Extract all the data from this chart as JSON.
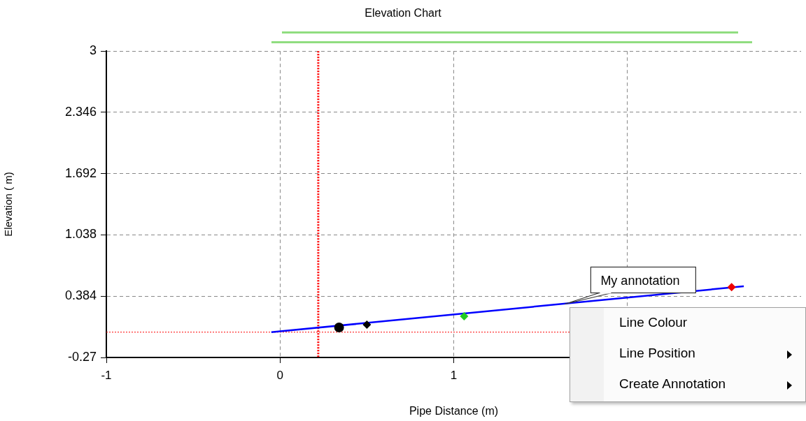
{
  "chart_data": {
    "type": "line",
    "title": "Elevation Chart",
    "xlabel": "Pipe Distance (m)",
    "ylabel": "Elevation ( m)",
    "xlim": [
      -1,
      3
    ],
    "xticks": [
      -1,
      0,
      1,
      {
        "value": 2,
        "label": null
      }
    ],
    "ylim": [
      -0.27,
      3
    ],
    "yticks": [
      -0.27,
      0.384,
      1.038,
      1.692,
      2.346,
      3
    ],
    "grid": true,
    "legend": false,
    "series": [
      {
        "color": "#0000ff",
        "x": [
          -0.05,
          2.67
        ],
        "values": [
          0,
          0.49
        ],
        "marker": "none"
      },
      {
        "type": "scatter",
        "color": "#000000",
        "x": [
          0.34
        ],
        "values": [
          0.05
        ],
        "marker": "circle"
      },
      {
        "type": "scatter",
        "color": "#000000",
        "x": [
          0.5
        ],
        "values": [
          0.08
        ],
        "marker": "diamond"
      },
      {
        "type": "scatter",
        "color": "#22cc22",
        "x": [
          1.06
        ],
        "values": [
          0.17
        ],
        "marker": "diamond"
      },
      {
        "type": "scatter",
        "color": "#ee0000",
        "x": [
          2.6
        ],
        "values": [
          0.48
        ],
        "marker": "diamond"
      }
    ],
    "ref_lines": [
      {
        "axis": "x",
        "value": 0.22,
        "color": "#ff0000",
        "line_style": "dotted"
      },
      {
        "axis": "y",
        "value": 0,
        "color": "#ff0000",
        "line_style": "dotted"
      }
    ],
    "annotations": [
      {
        "text": "My annotation",
        "x": 1.64,
        "y": 0.3
      },
      "Line Colour",
      "Line Position",
      "Create Annotation"
    ]
  }
}
